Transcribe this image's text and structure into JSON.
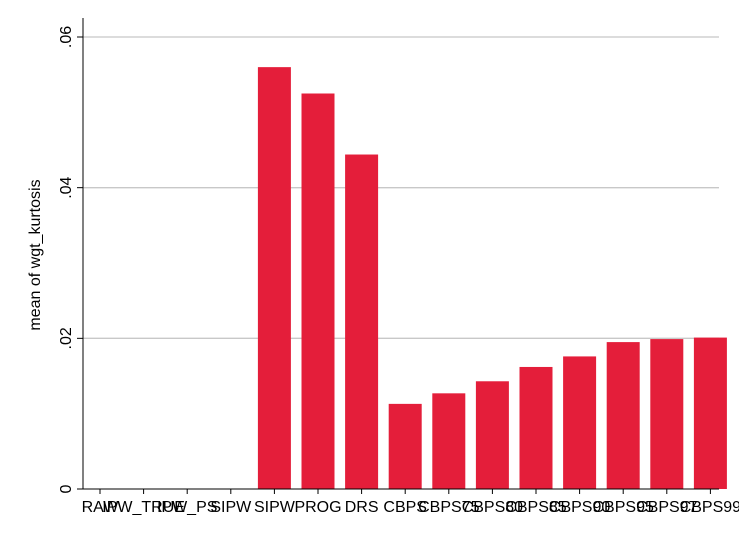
{
  "chart_data": {
    "type": "bar",
    "title": "",
    "xlabel": "",
    "ylabel": "mean of wgt_kurtosis",
    "categories": [
      "RAW",
      "IPW_TRUE",
      "IPW_PS",
      "SIPW",
      "SIPW",
      "PROG",
      "DRS",
      "CBPS",
      "CBPS75",
      "CBPS80",
      "CBPS85",
      "CBPS90",
      "CBPS95",
      "CBPS97",
      "CBPS99"
    ],
    "values": [
      0,
      0,
      0,
      0,
      0.056,
      0.0525,
      0.0444,
      0.0113,
      0.0127,
      0.0143,
      0.0162,
      0.0176,
      0.0195,
      0.0199,
      0.0201
    ],
    "ylim": [
      0,
      0.06
    ],
    "yticks": [
      {
        "value": 0,
        "label": "0"
      },
      {
        "value": 0.02,
        "label": ".02"
      },
      {
        "value": 0.04,
        "label": ".04"
      },
      {
        "value": 0.06,
        "label": ".06"
      }
    ],
    "grid": true,
    "legend": "none",
    "colors": {
      "bar": "#e41e3a",
      "grid": "#c8c8c8",
      "axis": "#000000"
    }
  }
}
